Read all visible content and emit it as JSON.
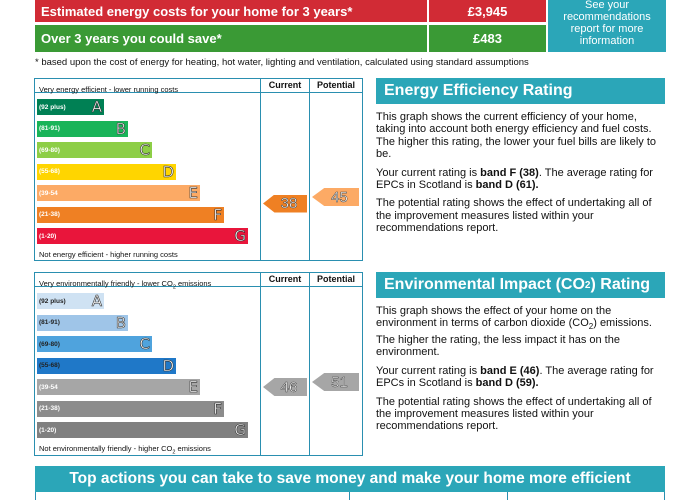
{
  "costs": {
    "estimated_label": "Estimated energy costs for your home for 3 years*",
    "estimated_value": "£3,945",
    "save_label": "Over 3 years you could save*",
    "save_value": "£483",
    "see_recommendations": "See your recommendations report for more information",
    "footnote": "* based upon the cost of energy for heating, hot water, lighting and ventilation, calculated using standard assumptions"
  },
  "energy_chart": {
    "col_current": "Current",
    "col_potential": "Potential",
    "top_label": "Very energy efficient - lower running costs",
    "bottom_label": "Not energy efficient - higher running costs",
    "bands": [
      {
        "range": "(92 plus)",
        "letter": "A",
        "color": "#008054"
      },
      {
        "range": "(81-91)",
        "letter": "B",
        "color": "#19b459"
      },
      {
        "range": "(69-80)",
        "letter": "C",
        "color": "#8dce46"
      },
      {
        "range": "(55-68)",
        "letter": "D",
        "color": "#ffd500"
      },
      {
        "range": "(39-54",
        "letter": "E",
        "color": "#fcaa65"
      },
      {
        "range": "(21-38)",
        "letter": "F",
        "color": "#ef8023"
      },
      {
        "range": "(1-20)",
        "letter": "G",
        "color": "#e9153b"
      }
    ],
    "current": {
      "value": "38",
      "band": "F",
      "color": "#ef8023"
    },
    "potential": {
      "value": "45",
      "band": "E",
      "color": "#fcaa65"
    }
  },
  "env_chart": {
    "col_current": "Current",
    "col_potential": "Potential",
    "top_label_pre": "Very environmentally friendly - lower CO",
    "top_label_sub": "2",
    "top_label_post": " emissions",
    "bottom_label_pre": "Not environmentally friendly - higher CO",
    "bottom_label_sub": "2",
    "bottom_label_post": " emissions",
    "bands": [
      {
        "range": "(92 plus)",
        "letter": "A",
        "color": "#cfe2f3"
      },
      {
        "range": "(81-91)",
        "letter": "B",
        "color": "#9fc5e8"
      },
      {
        "range": "(69-80)",
        "letter": "C",
        "color": "#4fa3dd"
      },
      {
        "range": "(55-68)",
        "letter": "D",
        "color": "#1f78c8"
      },
      {
        "range": "(39-54",
        "letter": "E",
        "color": "#a6a6a6"
      },
      {
        "range": "(21-38)",
        "letter": "F",
        "color": "#8c8c8c"
      },
      {
        "range": "(1-20)",
        "letter": "G",
        "color": "#808080"
      }
    ],
    "current": {
      "value": "46",
      "band": "E",
      "color": "#a6a6a6"
    },
    "potential": {
      "value": "51",
      "band": "E",
      "color": "#a6a6a6"
    }
  },
  "energy_rating": {
    "title": "Energy Efficiency Rating",
    "p1": "This graph shows the current efficiency of your home, taking into account both energy efficiency and fuel costs. The higher this rating, the lower your fuel bills are likely to be.",
    "p2_pre": "Your current rating is ",
    "p2_bold1": "band F (38)",
    "p2_mid": ". The average rating for EPCs in Scotland is ",
    "p2_bold2": "band D (61).",
    "p3": "The potential rating shows the effect of undertaking all of the improvement measures listed within your recommendations report."
  },
  "env_rating": {
    "title_pre": "Environmental Impact (CO",
    "title_sub": "2",
    "title_post": ") Rating",
    "p1_pre": "This graph shows the effect of your home on the environment in terms of carbon dioxide (CO",
    "p1_sub": "2",
    "p1_post": ") emissions. The higher the rating, the less impact it has on the environment.",
    "p2_pre": "Your current rating is ",
    "p2_bold1": "band E (46)",
    "p2_mid": ". The average rating for EPCs in Scotland is ",
    "p2_bold2": "band D (59).",
    "p3": "The potential rating shows the effect of undertaking all of the improvement measures listed within your recommendations report."
  },
  "top_actions": {
    "title": "Top actions you can take to save money and make your home more efficient"
  }
}
